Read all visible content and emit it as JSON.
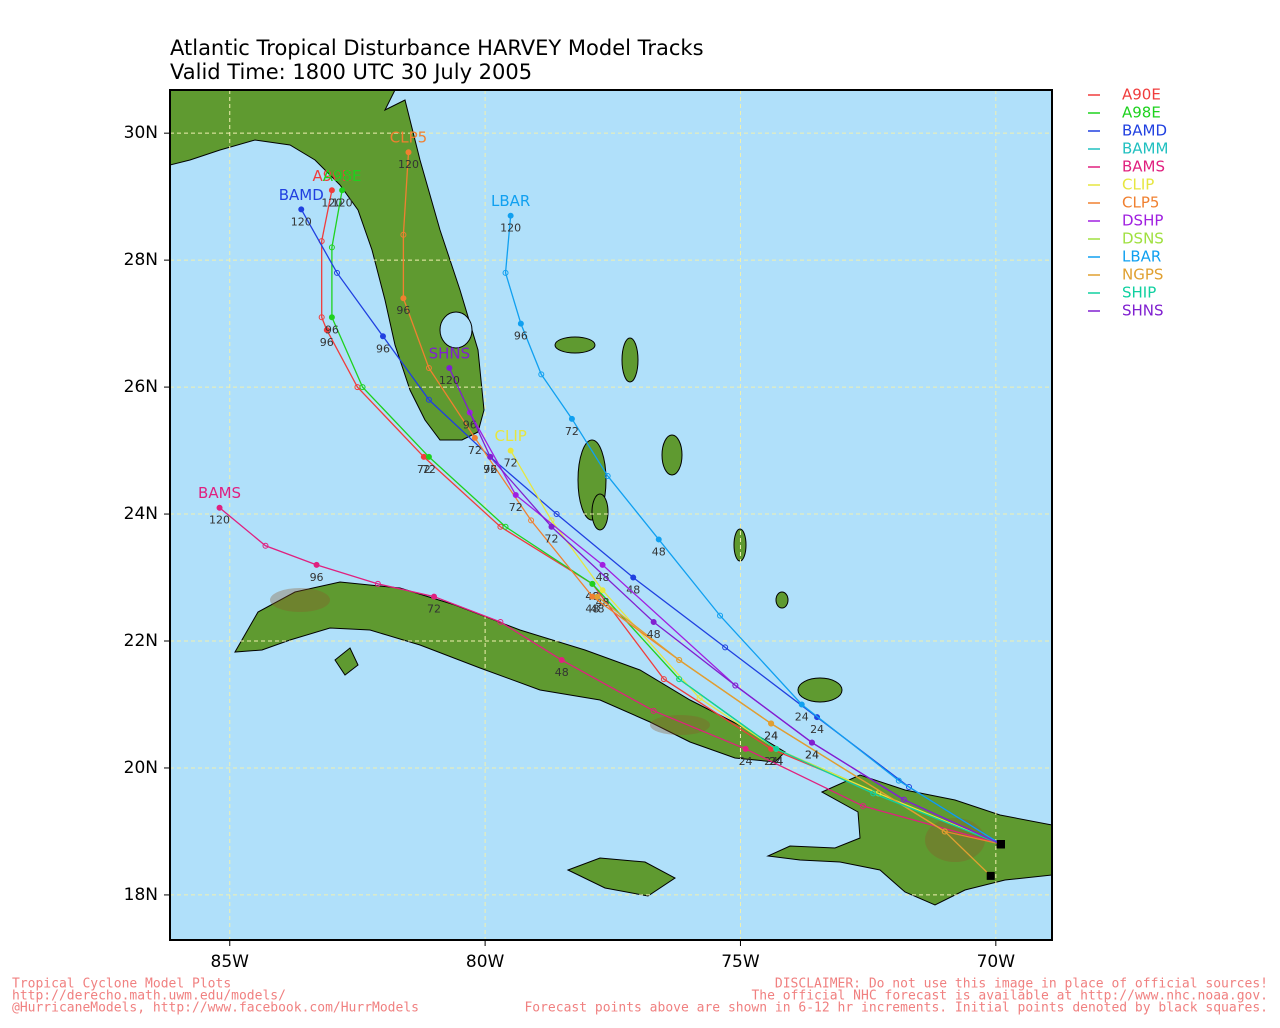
{
  "chart_data": {
    "type": "track",
    "title": "Atlantic Tropical Disturbance HARVEY Model Tracks",
    "subtitle": "Valid Time: 1800 UTC 30 July 2005",
    "xlim": [
      -86.17,
      -68.9
    ],
    "ylim": [
      17.29,
      30.68
    ],
    "xticks": [
      {
        "value": -85,
        "label": "85W"
      },
      {
        "value": -80,
        "label": "80W"
      },
      {
        "value": -75,
        "label": "75W"
      },
      {
        "value": -70,
        "label": "70W"
      }
    ],
    "yticks": [
      {
        "value": 18,
        "label": "18N"
      },
      {
        "value": 20,
        "label": "20N"
      },
      {
        "value": 22,
        "label": "22N"
      },
      {
        "value": 24,
        "label": "24N"
      },
      {
        "value": 26,
        "label": "26N"
      },
      {
        "value": 28,
        "label": "28N"
      },
      {
        "value": 30,
        "label": "30N"
      }
    ],
    "grid": true,
    "legend": "right",
    "series": [
      {
        "name": "A90E",
        "color": "#f03c3c",
        "end_label": true,
        "x": [
          -69.9,
          -72.3,
          -74.4,
          -76.5,
          -77.9,
          -79.7,
          -81.2,
          -82.5,
          -83.1,
          -83.2,
          -83.2,
          -83.0
        ],
        "y": [
          18.8,
          19.6,
          20.3,
          21.4,
          22.9,
          23.8,
          24.9,
          26.0,
          26.9,
          27.1,
          28.3,
          29.1
        ],
        "point_labels": [
          null,
          null,
          24,
          null,
          48,
          null,
          72,
          null,
          96,
          null,
          null,
          120
        ]
      },
      {
        "name": "A98E",
        "color": "#1ed21e",
        "end_label": true,
        "x": [
          -69.9,
          -72.3,
          -74.3,
          -76.2,
          -77.9,
          -79.6,
          -81.1,
          -82.4,
          -83.0,
          -83.0,
          -82.8
        ],
        "y": [
          18.8,
          19.6,
          20.3,
          21.4,
          22.9,
          23.8,
          24.9,
          26.0,
          27.1,
          28.2,
          29.1
        ],
        "point_labels": [
          null,
          null,
          24,
          null,
          48,
          null,
          72,
          null,
          96,
          null,
          120
        ]
      },
      {
        "name": "BAMD",
        "color": "#2040e0",
        "end_label": true,
        "x": [
          -69.9,
          -71.7,
          -73.5,
          -75.3,
          -77.1,
          -78.6,
          -79.9,
          -81.1,
          -82.0,
          -82.9,
          -83.6
        ],
        "y": [
          18.8,
          19.7,
          20.8,
          21.9,
          23.0,
          24.0,
          24.9,
          25.8,
          26.8,
          27.8,
          28.8
        ],
        "point_labels": [
          null,
          null,
          24,
          null,
          48,
          null,
          72,
          null,
          96,
          null,
          120
        ]
      },
      {
        "name": "BAMM",
        "color": "#20c0c0",
        "end_label": false,
        "x": [],
        "y": [],
        "point_labels": []
      },
      {
        "name": "BAMS",
        "color": "#e0207f",
        "end_label": true,
        "x": [
          -69.9,
          -72.6,
          -74.9,
          -76.7,
          -78.5,
          -79.7,
          -81.0,
          -82.1,
          -83.3,
          -84.3,
          -85.2
        ],
        "y": [
          18.8,
          19.4,
          20.3,
          20.9,
          21.7,
          22.3,
          22.7,
          22.9,
          23.2,
          23.5,
          24.1
        ],
        "point_labels": [
          null,
          null,
          24,
          null,
          48,
          null,
          72,
          null,
          96,
          null,
          120
        ]
      },
      {
        "name": "CLIP",
        "color": "#e6e640",
        "end_label": true,
        "x": [
          -69.9,
          -72.3,
          -74.3,
          -75.8,
          -77.7,
          -78.7,
          -79.5
        ],
        "y": [
          18.8,
          19.6,
          20.3,
          21.1,
          22.8,
          23.9,
          25.0
        ],
        "point_labels": [
          null,
          null,
          24,
          null,
          48,
          null,
          72
        ]
      },
      {
        "name": "CLP5",
        "color": "#f08030",
        "end_label": true,
        "x": [
          -69.9,
          -71.0,
          -74.4,
          -76.2,
          -77.9,
          -79.1,
          -80.2,
          -81.1,
          -81.6,
          -81.6,
          -81.5
        ],
        "y": [
          18.8,
          19.0,
          20.7,
          21.7,
          22.7,
          23.9,
          25.2,
          26.3,
          27.4,
          28.4,
          29.7
        ],
        "point_labels": [
          null,
          null,
          24,
          null,
          48,
          null,
          72,
          null,
          96,
          null,
          120
        ]
      },
      {
        "name": "DSHP",
        "color": "#a020e0",
        "end_label": false,
        "x": [
          -69.9,
          -71.8,
          -73.6,
          -75.1,
          -77.7,
          -79.4,
          -80.3
        ],
        "y": [
          18.8,
          19.5,
          20.4,
          21.3,
          23.2,
          24.3,
          25.6
        ],
        "point_labels": [
          null,
          null,
          24,
          null,
          48,
          72,
          96
        ]
      },
      {
        "name": "DSNS",
        "color": "#a0e040",
        "end_label": false,
        "x": [],
        "y": [],
        "point_labels": []
      },
      {
        "name": "LBAR",
        "color": "#10a0f0",
        "end_label": true,
        "x": [
          -69.9,
          -71.9,
          -73.8,
          -75.4,
          -76.6,
          -77.6,
          -78.3,
          -78.9,
          -79.3,
          -79.6,
          -79.5
        ],
        "y": [
          18.8,
          19.8,
          21.0,
          22.4,
          23.6,
          24.6,
          25.5,
          26.2,
          27.0,
          27.8,
          28.7
        ],
        "point_labels": [
          null,
          null,
          24,
          null,
          48,
          null,
          72,
          null,
          96,
          null,
          120
        ]
      },
      {
        "name": "NGPS",
        "color": "#e0a030",
        "end_label": false,
        "x": [
          -70.1,
          -71.0,
          -74.4,
          -76.2,
          -77.8
        ],
        "y": [
          18.3,
          19.0,
          20.7,
          21.7,
          22.7
        ],
        "point_labels": [
          null,
          null,
          24,
          null,
          48
        ]
      },
      {
        "name": "SHIP",
        "color": "#10d0a0",
        "end_label": false,
        "x": [
          -69.9,
          -72.4,
          -74.3,
          -76.2
        ],
        "y": [
          18.8,
          19.6,
          20.3,
          21.4
        ],
        "point_labels": [
          null,
          null,
          24,
          null
        ]
      },
      {
        "name": "SHNS",
        "color": "#8020d0",
        "end_label": true,
        "x": [
          -69.9,
          -71.8,
          -73.6,
          -75.1,
          -76.7,
          -78.7,
          -79.9,
          -80.7
        ],
        "y": [
          18.8,
          19.5,
          20.4,
          21.3,
          22.3,
          23.8,
          24.9,
          26.3
        ],
        "point_labels": [
          null,
          null,
          24,
          null,
          48,
          72,
          96,
          120
        ]
      }
    ]
  },
  "footer": {
    "left": [
      "Tropical Cyclone Model Plots",
      "http://derecho.math.uwm.edu/models/",
      "@HurricaneModels, http://www.facebook.com/HurrModels"
    ],
    "right": [
      "DISCLAIMER: Do not use this image in place of official sources!",
      "The official NHC forecast is available at http://www.nhc.noaa.gov.",
      "Forecast points above are shown in 6-12 hr increments. Initial points denoted by black squares."
    ]
  }
}
